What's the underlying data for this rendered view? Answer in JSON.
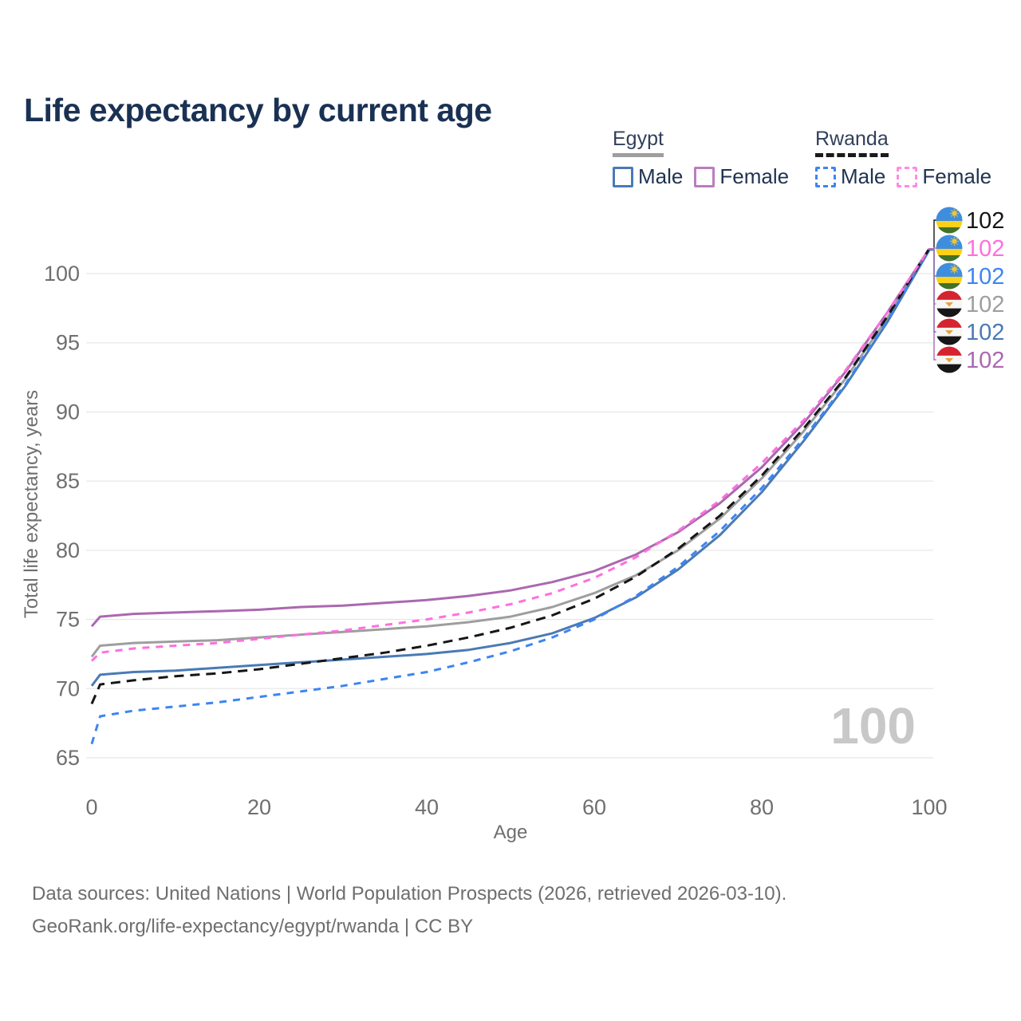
{
  "chart_data": {
    "type": "line",
    "title": "Life expectancy by current age",
    "xlabel": "Age",
    "ylabel": "Total life expectancy, years",
    "xlim": [
      0,
      100
    ],
    "ylim": [
      65,
      102.5
    ],
    "xticks": [
      0,
      20,
      40,
      60,
      80,
      100
    ],
    "yticks": [
      65,
      70,
      75,
      80,
      85,
      90,
      95,
      100
    ],
    "grid": "horizontal-only",
    "legend_position": "top-right",
    "x": [
      0,
      1,
      5,
      10,
      15,
      20,
      25,
      30,
      35,
      40,
      45,
      50,
      55,
      60,
      65,
      70,
      75,
      80,
      85,
      90,
      95,
      100
    ],
    "series": [
      {
        "id": "egypt-total",
        "name": "Egypt",
        "country": "Egypt",
        "sex": "Both",
        "color": "#9e9e9e",
        "dash": "solid",
        "dash_pattern": "",
        "flag": "egypt",
        "end_label": "102",
        "values": [
          72.3,
          73.1,
          73.3,
          73.4,
          73.5,
          73.7,
          73.9,
          74.1,
          74.3,
          74.5,
          74.8,
          75.2,
          75.9,
          76.9,
          78.2,
          80.0,
          82.3,
          85.2,
          88.6,
          92.4,
          96.8,
          101.8
        ]
      },
      {
        "id": "egypt-female",
        "name": "Egypt Female",
        "country": "Egypt",
        "sex": "Female",
        "color": "#ab68b0",
        "dash": "solid",
        "dash_pattern": "",
        "flag": "egypt",
        "end_label": "102",
        "values": [
          74.5,
          75.2,
          75.4,
          75.5,
          75.6,
          75.7,
          75.9,
          76.0,
          76.2,
          76.4,
          76.7,
          77.1,
          77.7,
          78.5,
          79.7,
          81.3,
          83.4,
          86.0,
          89.2,
          92.9,
          97.2,
          101.8
        ]
      },
      {
        "id": "egypt-male",
        "name": "Egypt Male",
        "country": "Egypt",
        "sex": "Male",
        "color": "#4a7ab5",
        "dash": "solid",
        "dash_pattern": "",
        "flag": "egypt",
        "end_label": "102",
        "values": [
          70.2,
          71.0,
          71.2,
          71.3,
          71.5,
          71.7,
          71.9,
          72.1,
          72.3,
          72.5,
          72.8,
          73.3,
          74.0,
          75.1,
          76.6,
          78.6,
          81.1,
          84.2,
          87.9,
          91.9,
          96.5,
          101.7
        ]
      },
      {
        "id": "rwanda-male",
        "name": "Rwanda Male",
        "country": "Rwanda",
        "sex": "Male",
        "color": "#3d85f2",
        "dash": "dashed",
        "dash_pattern": "9 8",
        "flag": "rwanda",
        "end_label": "102",
        "values": [
          66.0,
          68.0,
          68.4,
          68.7,
          69.0,
          69.4,
          69.8,
          70.2,
          70.7,
          71.2,
          71.9,
          72.7,
          73.7,
          75.0,
          76.7,
          78.8,
          81.4,
          84.5,
          88.1,
          92.0,
          96.6,
          101.7
        ]
      },
      {
        "id": "rwanda-total",
        "name": "Rwanda",
        "country": "Rwanda",
        "sex": "Both",
        "color": "#161616",
        "dash": "dashed",
        "dash_pattern": "12 8",
        "flag": "rwanda",
        "end_label": "102",
        "values": [
          68.9,
          70.3,
          70.6,
          70.9,
          71.1,
          71.4,
          71.8,
          72.2,
          72.6,
          73.1,
          73.7,
          74.4,
          75.3,
          76.5,
          78.1,
          80.1,
          82.5,
          85.4,
          88.8,
          92.5,
          96.9,
          101.8
        ]
      },
      {
        "id": "rwanda-female",
        "name": "Rwanda Female",
        "country": "Rwanda",
        "sex": "Female",
        "color": "#ff6fdf",
        "dash": "dashed",
        "dash_pattern": "9 8",
        "flag": "rwanda",
        "end_label": "102",
        "values": [
          72.0,
          72.6,
          72.9,
          73.1,
          73.3,
          73.6,
          73.9,
          74.2,
          74.6,
          75.0,
          75.5,
          76.1,
          76.9,
          78.0,
          79.5,
          81.4,
          83.6,
          86.3,
          89.4,
          93.0,
          97.2,
          101.8
        ]
      }
    ],
    "end_label_order": [
      "rwanda-total",
      "rwanda-female",
      "rwanda-male",
      "egypt-total",
      "egypt-male",
      "egypt-female"
    ]
  },
  "legend": {
    "groups": [
      {
        "id": "egypt",
        "label": "Egypt",
        "underline": "solid",
        "underline_color": "#9e9e9e",
        "items": [
          {
            "label": "Male",
            "color": "#4a7ab5",
            "style": "solid"
          },
          {
            "label": "Female",
            "color": "#bb7cc0",
            "style": "solid"
          }
        ]
      },
      {
        "id": "rwanda",
        "label": "Rwanda",
        "underline": "dashed",
        "underline_color": "#1a1a1a",
        "items": [
          {
            "label": "Male",
            "color": "#3d85f2",
            "style": "dashed"
          },
          {
            "label": "Female",
            "color": "#ff8ae4",
            "style": "dashed"
          }
        ]
      }
    ]
  },
  "watermark": "100",
  "footer": {
    "line1": "Data sources: United Nations | World Population Prospects (2026, retrieved 2026-03-10).",
    "line2": "GeoRank.org/life-expectancy/egypt/rwanda | CC BY"
  }
}
